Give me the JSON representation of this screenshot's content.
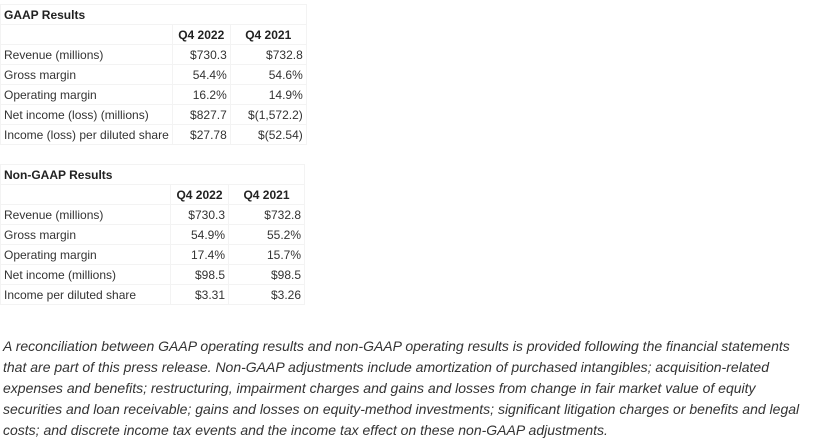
{
  "tables": [
    {
      "title": "GAAP Results",
      "columns": [
        "Q4 2022",
        "Q4 2021"
      ],
      "rows": [
        [
          "Revenue (millions)",
          "$730.3",
          "$732.8"
        ],
        [
          "Gross margin",
          "54.4%",
          "54.6%"
        ],
        [
          "Operating margin",
          "16.2%",
          "14.9%"
        ],
        [
          "Net income (loss) (millions)",
          "$827.7",
          "$(1,572.2)"
        ],
        [
          "Income (loss) per diluted share",
          "$27.78",
          "$(52.54)"
        ]
      ]
    },
    {
      "title": "Non-GAAP Results",
      "columns": [
        "Q4 2022",
        "Q4 2021"
      ],
      "rows": [
        [
          "Revenue (millions)",
          "$730.3",
          "$732.8"
        ],
        [
          "Gross margin",
          "54.9%",
          "55.2%"
        ],
        [
          "Operating margin",
          "17.4%",
          "15.7%"
        ],
        [
          "Net income (millions)",
          "$98.5",
          "$98.5"
        ],
        [
          "Income per diluted share",
          "$3.31",
          "$3.26"
        ]
      ]
    }
  ],
  "note": "A reconciliation between GAAP operating results and non-GAAP operating results is provided following the financial statements that are part of this press release. Non-GAAP adjustments include amortization of purchased intangibles; acquisition-related expenses and benefits; restructuring, impairment charges and gains and losses from change in fair market value of equity securities and loan receivable; gains and losses on equity-method investments; significant litigation charges or benefits and legal costs; and discrete income tax events and the income tax effect on these non-GAAP adjustments."
}
